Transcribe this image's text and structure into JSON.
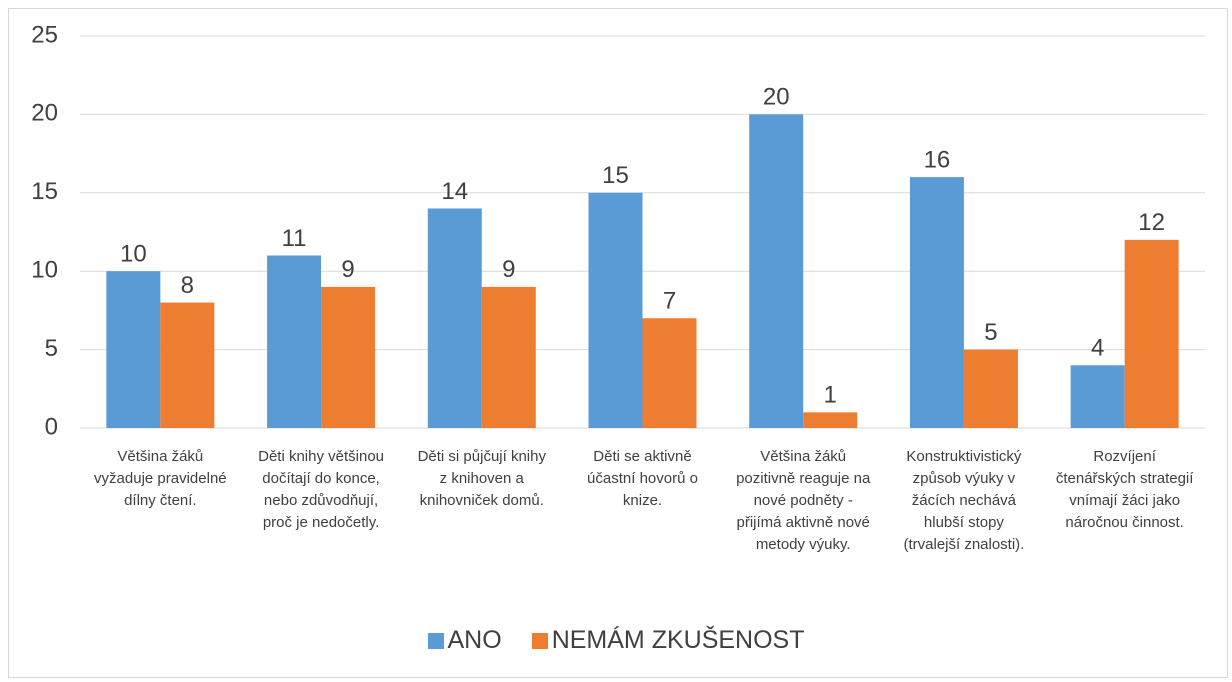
{
  "chart_data": {
    "type": "bar",
    "categories": [
      "Většina žáků vyžaduje pravidelné dílny čtení.",
      "Děti knihy většinou dočítají do konce, nebo zdůvodňují, proč je nedočetly.",
      "Děti si půjčují knihy z knihoven a knihovniček domů.",
      "Děti se aktivně účastní hovorů o knize.",
      "Většina žáků pozitivně reaguje na nové podněty - přijímá aktivně nové metody výuky.",
      "Konstruktivistický způsob výuky v žácích nechává hlubší stopy (trvalejší znalosti).",
      "Rozvíjení čtenářských strategií vnímají žáci jako náročnou činnost."
    ],
    "series": [
      {
        "name": "ANO",
        "color": "#5b9bd5",
        "values": [
          10,
          11,
          14,
          15,
          20,
          16,
          4
        ]
      },
      {
        "name": "NEMÁM ZKUŠENOST",
        "color": "#ed7d31",
        "values": [
          8,
          9,
          9,
          7,
          1,
          5,
          12
        ]
      }
    ],
    "ylim": [
      0,
      25
    ],
    "yticks": [
      0,
      5,
      10,
      15,
      20,
      25
    ],
    "grid": true,
    "legend": "bottom"
  }
}
